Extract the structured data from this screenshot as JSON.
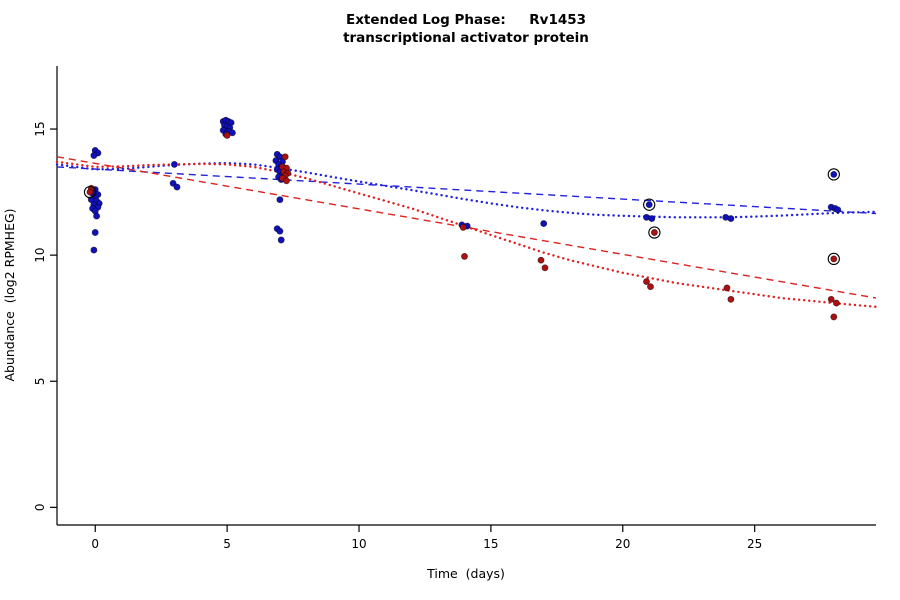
{
  "figure": {
    "background": "#FFFFFF"
  },
  "chart_data": {
    "type": "scatter",
    "title_line1": "Extended Log Phase:     Rv1453",
    "title_line2": "transcriptional activator protein",
    "xlabel": "Time  (days)",
    "ylabel": "Abundance  (log2 RPMHEG)",
    "xlim": [
      -1.45,
      29.6
    ],
    "ylim": [
      -0.7,
      17.5
    ],
    "x_ticks": [
      0,
      5,
      10,
      15,
      20,
      25
    ],
    "y_ticks": [
      0,
      5,
      10,
      15
    ],
    "grid": false,
    "legend": "none",
    "colors": {
      "blue_points": "#1111BB",
      "red_points": "#AA1111",
      "blue_line": "#2222DD",
      "red_line": "#DD2222",
      "outlier_ring": "#000000",
      "axis": "#000000"
    },
    "series": [
      {
        "name": "blue-replicates",
        "color": "#1111BB",
        "points": [
          [
            0,
            14.15
          ],
          [
            0.1,
            14.05
          ],
          [
            -0.05,
            13.95
          ],
          [
            0,
            12.6
          ],
          [
            -0.1,
            12.45
          ],
          [
            0.1,
            12.4
          ],
          [
            0,
            12.3
          ],
          [
            -0.15,
            12.2
          ],
          [
            0.05,
            12.15
          ],
          [
            0.15,
            12.05
          ],
          [
            -0.05,
            12.0
          ],
          [
            0.1,
            11.9
          ],
          [
            -0.1,
            11.85
          ],
          [
            0,
            11.75
          ],
          [
            0.05,
            11.55
          ],
          [
            0,
            10.9
          ],
          [
            -0.05,
            10.2
          ],
          [
            3,
            13.6
          ],
          [
            2.95,
            12.85
          ],
          [
            3.1,
            12.7
          ],
          [
            4.85,
            15.3
          ],
          [
            4.95,
            15.35
          ],
          [
            5.05,
            15.3
          ],
          [
            5.15,
            15.25
          ],
          [
            4.9,
            15.15
          ],
          [
            5.0,
            15.1
          ],
          [
            5.1,
            15.05
          ],
          [
            4.85,
            14.95
          ],
          [
            5.0,
            14.9
          ],
          [
            5.1,
            14.9
          ],
          [
            5.2,
            14.85
          ],
          [
            4.95,
            14.8
          ],
          [
            6.9,
            14.0
          ],
          [
            7.0,
            13.9
          ],
          [
            6.85,
            13.75
          ],
          [
            7.1,
            13.7
          ],
          [
            6.95,
            13.6
          ],
          [
            7.05,
            13.5
          ],
          [
            6.9,
            13.4
          ],
          [
            7.0,
            13.3
          ],
          [
            7.1,
            13.2
          ],
          [
            6.95,
            13.1
          ],
          [
            7.05,
            13.0
          ],
          [
            7.0,
            12.2
          ],
          [
            6.9,
            11.05
          ],
          [
            7.0,
            10.95
          ],
          [
            7.05,
            10.6
          ],
          [
            13.9,
            11.2
          ],
          [
            14.1,
            11.15
          ],
          [
            17,
            11.25
          ],
          [
            21,
            12.0
          ],
          [
            20.9,
            11.5
          ],
          [
            21.1,
            11.45
          ],
          [
            23.9,
            11.5
          ],
          [
            24.1,
            11.45
          ],
          [
            28,
            13.2
          ],
          [
            27.9,
            11.9
          ],
          [
            28.05,
            11.85
          ],
          [
            28.15,
            11.8
          ]
        ]
      },
      {
        "name": "red-replicates",
        "color": "#AA1111",
        "points": [
          [
            -0.15,
            12.65
          ],
          [
            -0.2,
            12.5
          ],
          [
            5.0,
            14.75
          ],
          [
            7.2,
            13.9
          ],
          [
            7.1,
            13.5
          ],
          [
            7.25,
            13.45
          ],
          [
            7.15,
            13.3
          ],
          [
            7.3,
            13.25
          ],
          [
            7.2,
            13.15
          ],
          [
            7.1,
            13.05
          ],
          [
            7.25,
            12.95
          ],
          [
            13.95,
            11.1
          ],
          [
            14.0,
            9.95
          ],
          [
            16.9,
            9.8
          ],
          [
            17.05,
            9.5
          ],
          [
            21.2,
            10.9
          ],
          [
            20.9,
            8.95
          ],
          [
            21.05,
            8.75
          ],
          [
            23.95,
            8.7
          ],
          [
            24.1,
            8.25
          ],
          [
            28,
            9.85
          ],
          [
            27.9,
            8.25
          ],
          [
            28.1,
            8.1
          ],
          [
            28.0,
            7.55
          ]
        ]
      }
    ],
    "outlier_circles": {
      "color": "#000000",
      "points": [
        [
          -0.2,
          12.5
        ],
        [
          21,
          12.0
        ],
        [
          21.2,
          10.9
        ],
        [
          28,
          13.2
        ],
        [
          28,
          9.85
        ]
      ]
    },
    "lines": [
      {
        "name": "blue-linear-fit",
        "color": "#2222DD",
        "dash": "dashed",
        "points": [
          [
            -1.45,
            13.5
          ],
          [
            29.6,
            11.65
          ]
        ]
      },
      {
        "name": "red-linear-fit",
        "color": "#DD2222",
        "dash": "dashed",
        "points": [
          [
            -1.45,
            13.9
          ],
          [
            29.6,
            8.3
          ]
        ]
      },
      {
        "name": "blue-loess-fit",
        "color": "#2222DD",
        "dash": "dotted",
        "points": [
          [
            -1.45,
            13.6
          ],
          [
            0,
            13.4
          ],
          [
            1,
            13.42
          ],
          [
            2,
            13.5
          ],
          [
            3,
            13.58
          ],
          [
            4,
            13.63
          ],
          [
            5,
            13.65
          ],
          [
            6,
            13.6
          ],
          [
            7,
            13.45
          ],
          [
            8,
            13.28
          ],
          [
            9,
            13.1
          ],
          [
            10,
            12.92
          ],
          [
            11,
            12.75
          ],
          [
            12,
            12.58
          ],
          [
            13,
            12.4
          ],
          [
            14,
            12.22
          ],
          [
            15,
            12.05
          ],
          [
            16,
            11.9
          ],
          [
            17,
            11.78
          ],
          [
            18,
            11.68
          ],
          [
            19,
            11.6
          ],
          [
            20,
            11.56
          ],
          [
            21,
            11.53
          ],
          [
            22,
            11.5
          ],
          [
            23,
            11.5
          ],
          [
            24,
            11.5
          ],
          [
            25,
            11.53
          ],
          [
            26,
            11.57
          ],
          [
            27,
            11.62
          ],
          [
            28,
            11.67
          ],
          [
            29.6,
            11.72
          ]
        ]
      },
      {
        "name": "red-loess-fit",
        "color": "#DD2222",
        "dash": "dotted",
        "points": [
          [
            -1.45,
            13.7
          ],
          [
            0,
            13.5
          ],
          [
            1,
            13.52
          ],
          [
            2,
            13.57
          ],
          [
            3,
            13.6
          ],
          [
            4,
            13.62
          ],
          [
            5,
            13.6
          ],
          [
            6,
            13.5
          ],
          [
            7,
            13.3
          ],
          [
            8,
            13.05
          ],
          [
            9,
            12.75
          ],
          [
            10,
            12.45
          ],
          [
            11,
            12.15
          ],
          [
            12,
            11.85
          ],
          [
            13,
            11.5
          ],
          [
            14,
            11.15
          ],
          [
            15,
            10.8
          ],
          [
            16,
            10.45
          ],
          [
            17,
            10.1
          ],
          [
            18,
            9.8
          ],
          [
            19,
            9.55
          ],
          [
            20,
            9.3
          ],
          [
            21,
            9.1
          ],
          [
            22,
            8.9
          ],
          [
            23,
            8.75
          ],
          [
            24,
            8.6
          ],
          [
            25,
            8.45
          ],
          [
            26,
            8.3
          ],
          [
            27,
            8.2
          ],
          [
            28,
            8.1
          ],
          [
            29.6,
            7.95
          ]
        ]
      }
    ]
  }
}
